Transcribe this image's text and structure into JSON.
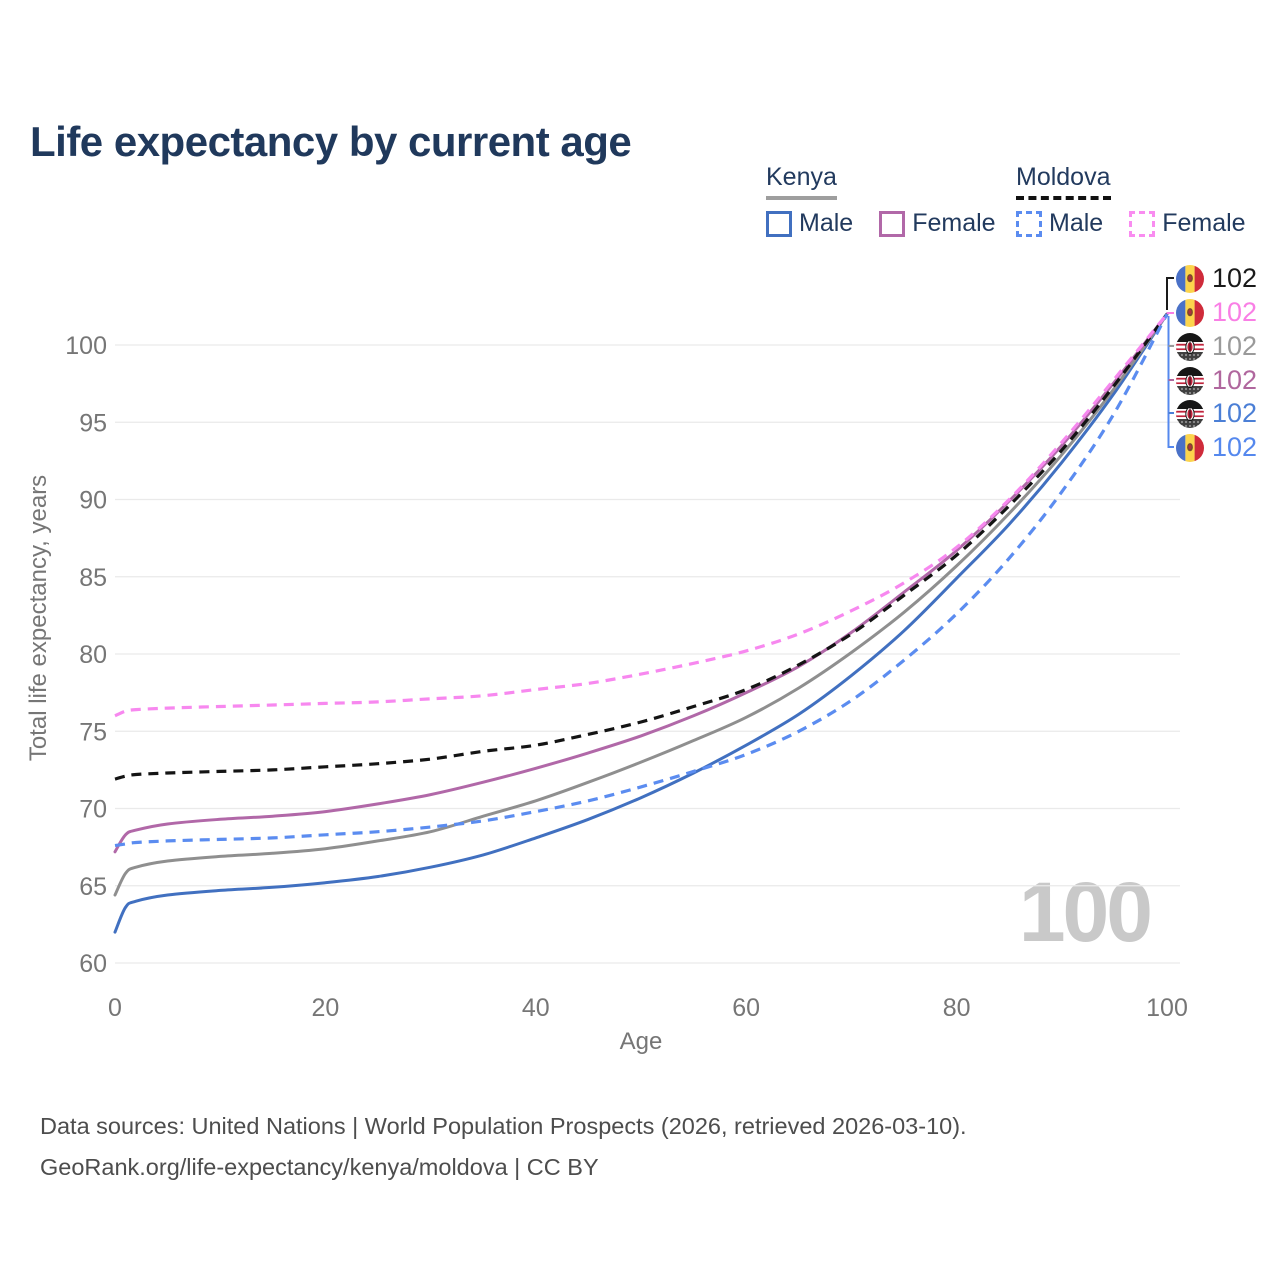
{
  "title": "Life expectancy by current age",
  "watermark": "100",
  "legend": {
    "groups": [
      {
        "label": "Kenya",
        "underline_color": "#9e9e9e",
        "underline_style": "solid",
        "items": [
          {
            "label": "Male",
            "color": "#4170c0",
            "dashed": false
          },
          {
            "label": "Female",
            "color": "#b168a8",
            "dashed": false
          }
        ]
      },
      {
        "label": "Moldova",
        "underline_color": "#111111",
        "underline_style": "dashed",
        "items": [
          {
            "label": "Male",
            "color": "#5b8cf0",
            "dashed": true
          },
          {
            "label": "Female",
            "color": "#f98cf0",
            "dashed": true
          }
        ]
      }
    ]
  },
  "end_labels": [
    {
      "value": "102",
      "color": "#1a1a1a",
      "flag": "moldova",
      "series": "Moldova"
    },
    {
      "value": "102",
      "color": "#f97fe5",
      "flag": "moldova",
      "series": "Moldova Female"
    },
    {
      "value": "102",
      "color": "#9a9a9a",
      "flag": "kenya",
      "series": "Kenya"
    },
    {
      "value": "102",
      "color": "#b0679e",
      "flag": "kenya",
      "series": "Kenya Female"
    },
    {
      "value": "102",
      "color": "#4b7fd6",
      "flag": "kenya",
      "series": "Kenya Male"
    },
    {
      "value": "102",
      "color": "#5588ee",
      "flag": "moldova",
      "series": "Moldova Male"
    }
  ],
  "chart_data": {
    "type": "line",
    "title": "Life expectancy by current age",
    "xlabel": "Age",
    "ylabel": "Total life expectancy, years",
    "xlim": [
      0,
      100
    ],
    "ylim": [
      60,
      102
    ],
    "xticks": [
      0,
      20,
      40,
      60,
      80,
      100
    ],
    "yticks": [
      60,
      65,
      70,
      75,
      80,
      85,
      90,
      95,
      100
    ],
    "grid": "horizontal",
    "legend_position": "top-right",
    "x": [
      0,
      1,
      2,
      5,
      10,
      15,
      20,
      25,
      30,
      35,
      40,
      45,
      50,
      55,
      60,
      65,
      70,
      75,
      80,
      85,
      90,
      95,
      100
    ],
    "series": [
      {
        "name": "Kenya Male",
        "country": "Kenya",
        "sex": "Male",
        "style": "solid",
        "color": "#4170c0",
        "values": [
          62.0,
          63.6,
          64.0,
          64.4,
          64.7,
          64.9,
          65.2,
          65.6,
          66.2,
          67.0,
          68.1,
          69.3,
          70.7,
          72.3,
          74.1,
          76.1,
          78.6,
          81.5,
          84.9,
          88.4,
          92.4,
          96.9,
          102
        ]
      },
      {
        "name": "Kenya",
        "country": "Kenya",
        "sex": "All",
        "style": "solid",
        "color": "#8f8f8f",
        "values": [
          64.4,
          65.8,
          66.2,
          66.6,
          66.9,
          67.1,
          67.4,
          67.9,
          68.5,
          69.5,
          70.5,
          71.7,
          73.0,
          74.4,
          75.9,
          77.8,
          80.1,
          82.7,
          85.7,
          89.1,
          92.9,
          97.2,
          102
        ]
      },
      {
        "name": "Kenya Female",
        "country": "Kenya",
        "sex": "Female",
        "style": "solid",
        "color": "#b168a8",
        "values": [
          67.2,
          68.3,
          68.6,
          69.0,
          69.3,
          69.5,
          69.8,
          70.3,
          70.9,
          71.7,
          72.6,
          73.6,
          74.7,
          76.0,
          77.5,
          79.2,
          81.4,
          84.0,
          86.7,
          89.9,
          93.5,
          97.6,
          102
        ]
      },
      {
        "name": "Moldova",
        "country": "Moldova",
        "sex": "All",
        "style": "dashed",
        "color": "#141414",
        "values": [
          71.9,
          72.1,
          72.2,
          72.3,
          72.4,
          72.5,
          72.7,
          72.9,
          73.2,
          73.7,
          74.1,
          74.8,
          75.6,
          76.6,
          77.7,
          79.3,
          81.3,
          83.8,
          86.4,
          89.6,
          93.2,
          97.4,
          102
        ]
      },
      {
        "name": "Moldova Male",
        "country": "Moldova",
        "sex": "Male",
        "style": "dashed",
        "color": "#5b8cf0",
        "values": [
          67.6,
          67.7,
          67.8,
          67.9,
          68.0,
          68.1,
          68.3,
          68.5,
          68.8,
          69.2,
          69.8,
          70.5,
          71.4,
          72.4,
          73.5,
          75.0,
          77.0,
          79.6,
          82.6,
          86.2,
          90.5,
          95.6,
          102
        ]
      },
      {
        "name": "Moldova Female",
        "country": "Moldova",
        "sex": "Female",
        "style": "dashed",
        "color": "#f788ef",
        "values": [
          76.0,
          76.3,
          76.4,
          76.5,
          76.6,
          76.7,
          76.8,
          76.9,
          77.1,
          77.3,
          77.7,
          78.1,
          78.7,
          79.4,
          80.2,
          81.3,
          82.8,
          84.6,
          86.9,
          90.0,
          93.7,
          97.8,
          102
        ]
      }
    ]
  },
  "footer": {
    "line1": "Data sources: United Nations | World Population Prospects (2026, retrieved 2026-03-10).",
    "line2": "GeoRank.org/life-expectancy/kenya/moldova | CC BY"
  }
}
